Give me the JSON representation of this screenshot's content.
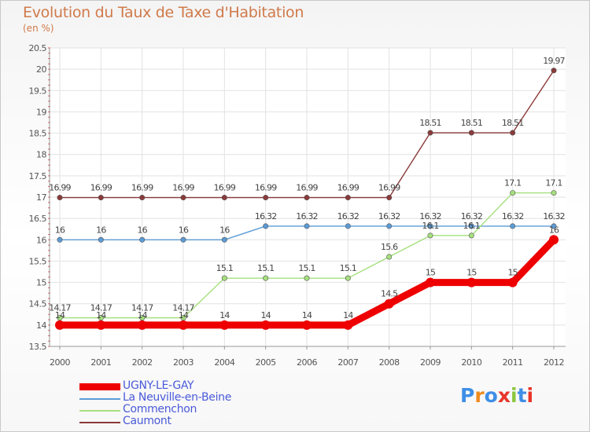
{
  "title": "Evolution du Taux de Taxe d'Habitation",
  "subtitle": "(en %)",
  "logo": {
    "text": "Proxiti",
    "letter_colors": [
      "#3e8ee6",
      "#f08a1e",
      "#3e8ee6",
      "#e8352a",
      "#8cc63e",
      "#3e8ee6",
      "#e8352a"
    ]
  },
  "chart_data": {
    "type": "line",
    "title": "Evolution du Taux de Taxe d'Habitation",
    "ylabel": "(en %)",
    "xlabel": "",
    "x": [
      2000,
      2001,
      2002,
      2003,
      2004,
      2005,
      2006,
      2007,
      2008,
      2009,
      2010,
      2011,
      2012
    ],
    "ylim": [
      13.5,
      20.5
    ],
    "yticks": [
      13.5,
      14,
      14.5,
      15,
      15.5,
      16,
      16.5,
      17,
      17.5,
      18,
      18.5,
      19,
      19.5,
      20,
      20.5
    ],
    "grid": true,
    "legend_position": "bottom-left",
    "series": [
      {
        "name": "UGNY-LE-GAY",
        "color": "#ee0000",
        "thick": true,
        "values": [
          14,
          14,
          14,
          14,
          14,
          14,
          14,
          14,
          14.5,
          15,
          15,
          15,
          16
        ],
        "labels": [
          "14",
          "14",
          "14",
          "14",
          "14",
          "14",
          "14",
          "14",
          "14.5",
          "15",
          "15",
          "15",
          "16"
        ]
      },
      {
        "name": "La Neuville-en-Beine",
        "color": "#5b9bd5",
        "thick": false,
        "values": [
          16,
          16,
          16,
          16,
          16,
          16.32,
          16.32,
          16.32,
          16.32,
          16.32,
          16.32,
          16.32,
          16.32
        ],
        "labels": [
          "16",
          "16",
          "16",
          "16",
          "16",
          "16.32",
          "16.32",
          "16.32",
          "16.32",
          "16.32",
          "16.32",
          "16.32",
          "16.32"
        ]
      },
      {
        "name": "Commenchon",
        "color": "#a6e07e",
        "thick": false,
        "values": [
          14.17,
          14.17,
          14.17,
          14.17,
          15.1,
          15.1,
          15.1,
          15.1,
          15.6,
          16.1,
          16.1,
          17.1,
          17.1
        ],
        "labels": [
          "14.17",
          "14.17",
          "14.17",
          "14.17",
          "15.1",
          "15.1",
          "15.1",
          "15.1",
          "15.6",
          "16.1",
          "16.1",
          "17.1",
          "17.1"
        ]
      },
      {
        "name": "Caumont",
        "color": "#8b3a3a",
        "thick": false,
        "values": [
          16.99,
          16.99,
          16.99,
          16.99,
          16.99,
          16.99,
          16.99,
          16.99,
          16.99,
          18.51,
          18.51,
          18.51,
          19.97
        ],
        "labels": [
          "16.99",
          "16.99",
          "16.99",
          "16.99",
          "16.99",
          "16.99",
          "16.99",
          "16.99",
          "16.99",
          "18.51",
          "18.51",
          "18.51",
          "19.97"
        ]
      }
    ]
  }
}
